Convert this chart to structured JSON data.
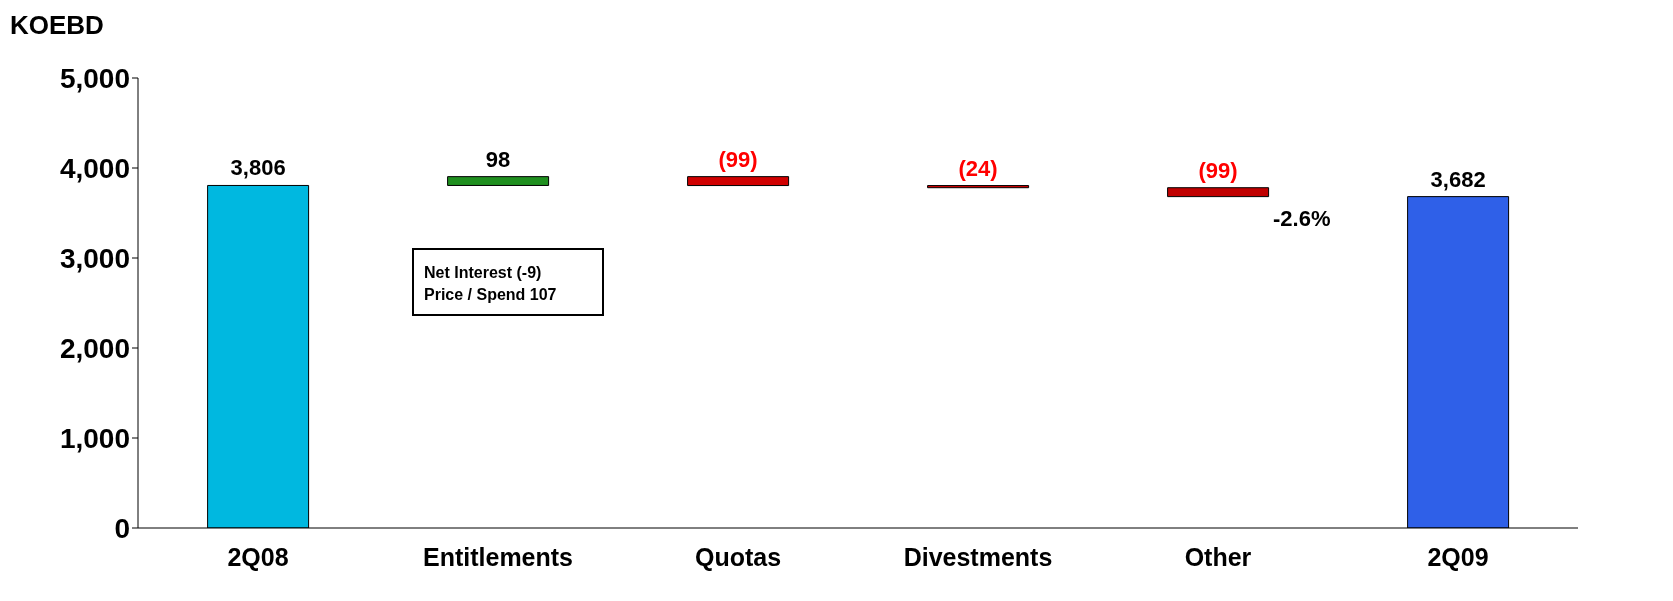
{
  "chart_data": {
    "type": "bar",
    "ylabel": "KOEBD",
    "categories": [
      "2Q08",
      "Entitlements",
      "Quotas",
      "Divestments",
      "Other",
      "2Q09"
    ],
    "values": [
      3806,
      98,
      -99,
      -24,
      -99,
      3682
    ],
    "base": [
      0,
      3806,
      3904,
      3805,
      3781,
      0
    ],
    "colors": [
      "#00b8e0",
      "#1f8f1f",
      "#d00000",
      "#d00000",
      "#c00000",
      "#2f60e8"
    ],
    "value_labels": [
      "3,806",
      "98",
      "(99)",
      "(24)",
      "(99)",
      "3,682"
    ],
    "ylim": [
      0,
      5000
    ],
    "yticks": [
      0,
      {
        "value": 1000,
        "label": "1,000"
      },
      {
        "value": 2000,
        "label": "2,000"
      },
      {
        "value": 3000,
        "label": "3,000"
      },
      {
        "value": 4000,
        "label": "4,000"
      },
      {
        "value": 5000,
        "label": "5,000"
      }
    ],
    "annotations": [
      "Net Interest (-9)",
      "Price / Spend 107",
      "-2.6%"
    ]
  }
}
